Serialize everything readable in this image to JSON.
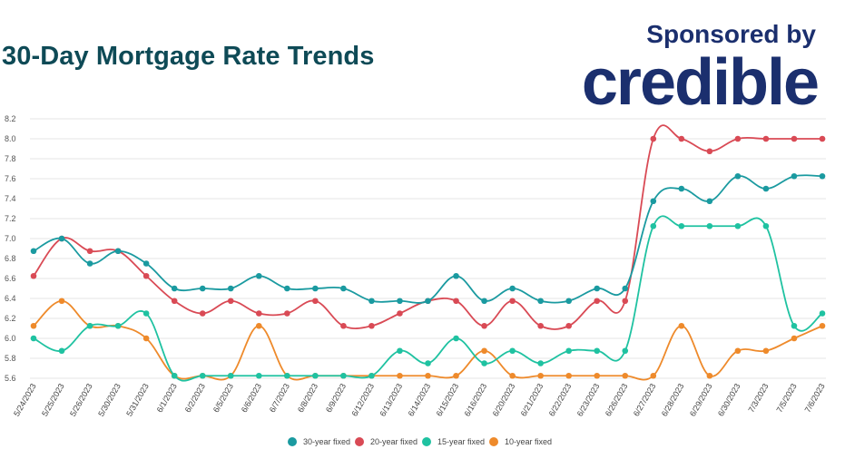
{
  "header": {
    "title": "30-Day Mortgage Rate Trends",
    "sponsor_label": "Sponsored by",
    "brand_logo": "credible"
  },
  "chart_data": {
    "type": "line",
    "title": "30-Day Mortgage Rate Trends",
    "xlabel": "",
    "ylabel": "",
    "ylim": [
      5.6,
      8.2
    ],
    "y_ticks": [
      5.6,
      5.8,
      6.0,
      6.2,
      6.4,
      6.6,
      6.8,
      7.0,
      7.2,
      7.4,
      7.6,
      7.8,
      8.0,
      8.2
    ],
    "grid": true,
    "legend_position": "bottom",
    "categories": [
      "5/24/2023",
      "5/25/2023",
      "5/26/2023",
      "5/30/2023",
      "5/31/2023",
      "6/1/2023",
      "6/2/2023",
      "6/5/2023",
      "6/6/2023",
      "6/7/2023",
      "6/8/2023",
      "6/9/2023",
      "6/12/2023",
      "6/13/2023",
      "6/14/2023",
      "6/15/2023",
      "6/16/2023",
      "6/20/2023",
      "6/21/2023",
      "6/22/2023",
      "6/23/2023",
      "6/26/2023",
      "6/27/2023",
      "6/28/2023",
      "6/29/2023",
      "6/30/2023",
      "7/3/2023",
      "7/5/2023",
      "7/6/2023"
    ],
    "series": [
      {
        "name": "30-year fixed",
        "color": "#1a9aa0",
        "values": [
          6.875,
          7.0,
          6.75,
          6.875,
          6.75,
          6.5,
          6.5,
          6.5,
          6.625,
          6.5,
          6.5,
          6.5,
          6.375,
          6.375,
          6.375,
          6.625,
          6.375,
          6.5,
          6.375,
          6.375,
          6.5,
          6.5,
          7.375,
          7.5,
          7.375,
          7.625,
          7.5,
          7.625,
          7.625
        ]
      },
      {
        "name": "20-year fixed",
        "color": "#d94a55",
        "values": [
          6.625,
          7.0,
          6.875,
          6.875,
          6.625,
          6.375,
          6.25,
          6.375,
          6.25,
          6.25,
          6.375,
          6.125,
          6.125,
          6.25,
          6.375,
          6.375,
          6.125,
          6.375,
          6.125,
          6.125,
          6.375,
          6.375,
          8.0,
          8.0,
          7.875,
          8.0,
          8.0,
          8.0,
          8.0
        ]
      },
      {
        "name": "15-year fixed",
        "color": "#1fc2a1",
        "values": [
          6.0,
          5.875,
          6.125,
          6.125,
          6.25,
          5.625,
          5.625,
          5.625,
          5.625,
          5.625,
          5.625,
          5.625,
          5.625,
          5.875,
          5.75,
          6.0,
          5.75,
          5.875,
          5.75,
          5.875,
          5.875,
          5.875,
          7.125,
          7.125,
          7.125,
          7.125,
          7.125,
          6.125,
          6.25
        ]
      },
      {
        "name": "10-year fixed",
        "color": "#ee8a2b",
        "values": [
          6.125,
          6.375,
          6.125,
          6.125,
          6.0,
          5.625,
          5.625,
          5.625,
          6.125,
          5.625,
          5.625,
          5.625,
          5.625,
          5.625,
          5.625,
          5.625,
          5.875,
          5.625,
          5.625,
          5.625,
          5.625,
          5.625,
          5.625,
          6.125,
          5.625,
          5.875,
          5.875,
          6.0,
          6.125
        ]
      }
    ]
  }
}
